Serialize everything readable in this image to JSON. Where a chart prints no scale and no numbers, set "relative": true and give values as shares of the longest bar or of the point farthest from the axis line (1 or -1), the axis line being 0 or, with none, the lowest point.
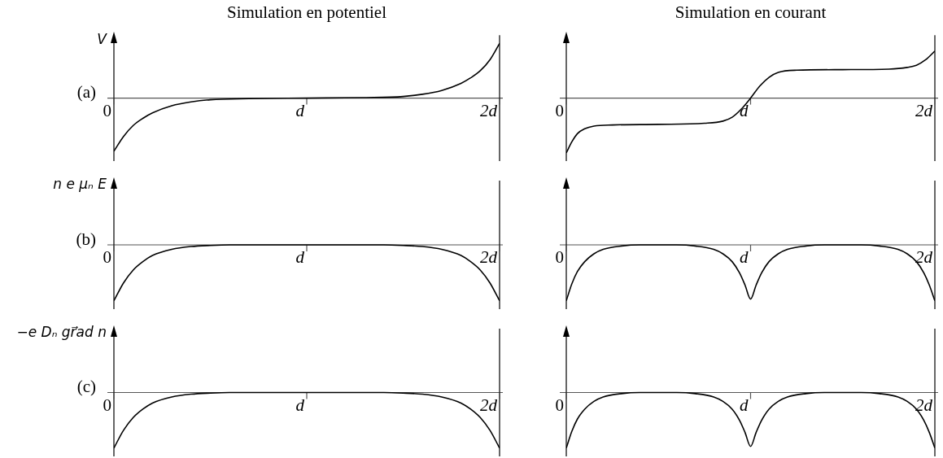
{
  "chart_data": [
    {
      "type": "line",
      "relative": true,
      "title": "Simulation en potentiel",
      "ylabel": "V",
      "annotations": [
        "(a)"
      ],
      "xlim": [
        0,
        2
      ],
      "xticks": [
        {
          "value": 0,
          "label": "0"
        },
        {
          "value": 1,
          "label": "d"
        },
        {
          "value": 2,
          "label": "2d"
        }
      ],
      "series": [
        {
          "color": "#000000",
          "x": [
            0,
            0.05,
            0.1,
            0.15,
            0.2,
            0.3,
            0.4,
            0.5,
            0.7,
            1,
            1.3,
            1.5,
            1.6,
            1.7,
            1.8,
            1.85,
            1.9,
            1.95,
            2
          ],
          "values": [
            -0.97,
            -0.7,
            -0.5,
            -0.37,
            -0.27,
            -0.14,
            -0.07,
            -0.03,
            -0.01,
            0,
            0.01,
            0.03,
            0.07,
            0.14,
            0.27,
            0.37,
            0.5,
            0.7,
            1
          ]
        }
      ]
    },
    {
      "type": "line",
      "relative": true,
      "title": "Simulation en courant",
      "xlim": [
        0,
        2
      ],
      "xticks": [
        {
          "value": 0,
          "label": "0"
        },
        {
          "value": 1,
          "label": "d"
        },
        {
          "value": 2,
          "label": "2d"
        }
      ],
      "series": [
        {
          "color": "#000000",
          "x": [
            0,
            0.03,
            0.06,
            0.1,
            0.15,
            0.25,
            0.5,
            0.75,
            0.85,
            0.9,
            0.95,
            1,
            1.05,
            1.1,
            1.15,
            1.25,
            1.5,
            1.75,
            1.85,
            1.9,
            1.95,
            2
          ],
          "values": [
            -1,
            -0.8,
            -0.65,
            -0.56,
            -0.51,
            -0.49,
            -0.48,
            -0.46,
            -0.42,
            -0.35,
            -0.2,
            0,
            0.22,
            0.38,
            0.47,
            0.51,
            0.52,
            0.53,
            0.56,
            0.6,
            0.7,
            0.86
          ]
        }
      ]
    },
    {
      "type": "line",
      "relative": true,
      "ylabel": "n e μₙ E",
      "annotations": [
        "(b)"
      ],
      "xlim": [
        0,
        2
      ],
      "xticks": [
        {
          "value": 0,
          "label": "0"
        },
        {
          "value": 1,
          "label": "d"
        },
        {
          "value": 2,
          "label": "2d"
        }
      ],
      "series": [
        {
          "color": "#000000",
          "x": [
            0,
            0.05,
            0.1,
            0.15,
            0.2,
            0.3,
            0.4,
            0.5,
            0.6,
            1,
            1.4,
            1.5,
            1.6,
            1.7,
            1.8,
            1.85,
            1.9,
            1.95,
            2
          ],
          "values": [
            -1,
            -0.68,
            -0.45,
            -0.3,
            -0.19,
            -0.08,
            -0.03,
            -0.01,
            0,
            0,
            0,
            -0.01,
            -0.03,
            -0.08,
            -0.19,
            -0.3,
            -0.45,
            -0.68,
            -1
          ]
        }
      ]
    },
    {
      "type": "line",
      "relative": true,
      "xlim": [
        0,
        2
      ],
      "xticks": [
        {
          "value": 0,
          "label": "0"
        },
        {
          "value": 1,
          "label": "d"
        },
        {
          "value": 2,
          "label": "2d"
        }
      ],
      "series": [
        {
          "color": "#000000",
          "x": [
            0,
            0.03,
            0.06,
            0.1,
            0.15,
            0.2,
            0.3,
            0.4,
            0.6,
            0.7,
            0.8,
            0.85,
            0.9,
            0.94,
            0.97,
            1,
            1.03,
            1.06,
            1.1,
            1.15,
            1.2,
            1.3,
            1.4,
            1.6,
            1.7,
            1.8,
            1.85,
            1.9,
            1.94,
            1.97,
            2
          ],
          "values": [
            -1,
            -0.7,
            -0.48,
            -0.3,
            -0.16,
            -0.08,
            -0.02,
            0,
            0,
            -0.02,
            -0.08,
            -0.16,
            -0.3,
            -0.5,
            -0.72,
            -0.97,
            -0.72,
            -0.5,
            -0.3,
            -0.16,
            -0.08,
            -0.02,
            0,
            0,
            -0.02,
            -0.08,
            -0.16,
            -0.3,
            -0.5,
            -0.72,
            -1
          ]
        }
      ]
    },
    {
      "type": "line",
      "relative": true,
      "ylabel": "−e Dₙ gr⃗ad n",
      "annotations": [
        "(c)"
      ],
      "xlim": [
        0,
        2
      ],
      "xticks": [
        {
          "value": 0,
          "label": "0"
        },
        {
          "value": 1,
          "label": "d"
        },
        {
          "value": 2,
          "label": "2d"
        }
      ],
      "series": [
        {
          "color": "#000000",
          "x": [
            0,
            0.05,
            0.1,
            0.15,
            0.2,
            0.3,
            0.4,
            0.5,
            0.6,
            1,
            1.4,
            1.5,
            1.6,
            1.7,
            1.8,
            1.85,
            1.9,
            1.95,
            2
          ],
          "values": [
            -1,
            -0.68,
            -0.45,
            -0.3,
            -0.19,
            -0.08,
            -0.03,
            -0.01,
            0,
            0,
            0,
            -0.01,
            -0.03,
            -0.08,
            -0.19,
            -0.3,
            -0.45,
            -0.68,
            -1
          ]
        }
      ]
    },
    {
      "type": "line",
      "relative": true,
      "xlim": [
        0,
        2
      ],
      "xticks": [
        {
          "value": 0,
          "label": "0"
        },
        {
          "value": 1,
          "label": "d"
        },
        {
          "value": 2,
          "label": "2d"
        }
      ],
      "series": [
        {
          "color": "#000000",
          "x": [
            0,
            0.03,
            0.06,
            0.1,
            0.15,
            0.2,
            0.3,
            0.4,
            0.6,
            0.7,
            0.8,
            0.85,
            0.9,
            0.94,
            0.97,
            1,
            1.03,
            1.06,
            1.1,
            1.15,
            1.2,
            1.3,
            1.4,
            1.6,
            1.7,
            1.8,
            1.85,
            1.9,
            1.94,
            1.97,
            2
          ],
          "values": [
            -1,
            -0.7,
            -0.48,
            -0.3,
            -0.16,
            -0.08,
            -0.02,
            0,
            0,
            -0.02,
            -0.08,
            -0.16,
            -0.3,
            -0.5,
            -0.72,
            -0.97,
            -0.72,
            -0.5,
            -0.3,
            -0.16,
            -0.08,
            -0.02,
            0,
            0,
            -0.02,
            -0.08,
            -0.16,
            -0.3,
            -0.5,
            -0.72,
            -1
          ]
        }
      ]
    }
  ]
}
